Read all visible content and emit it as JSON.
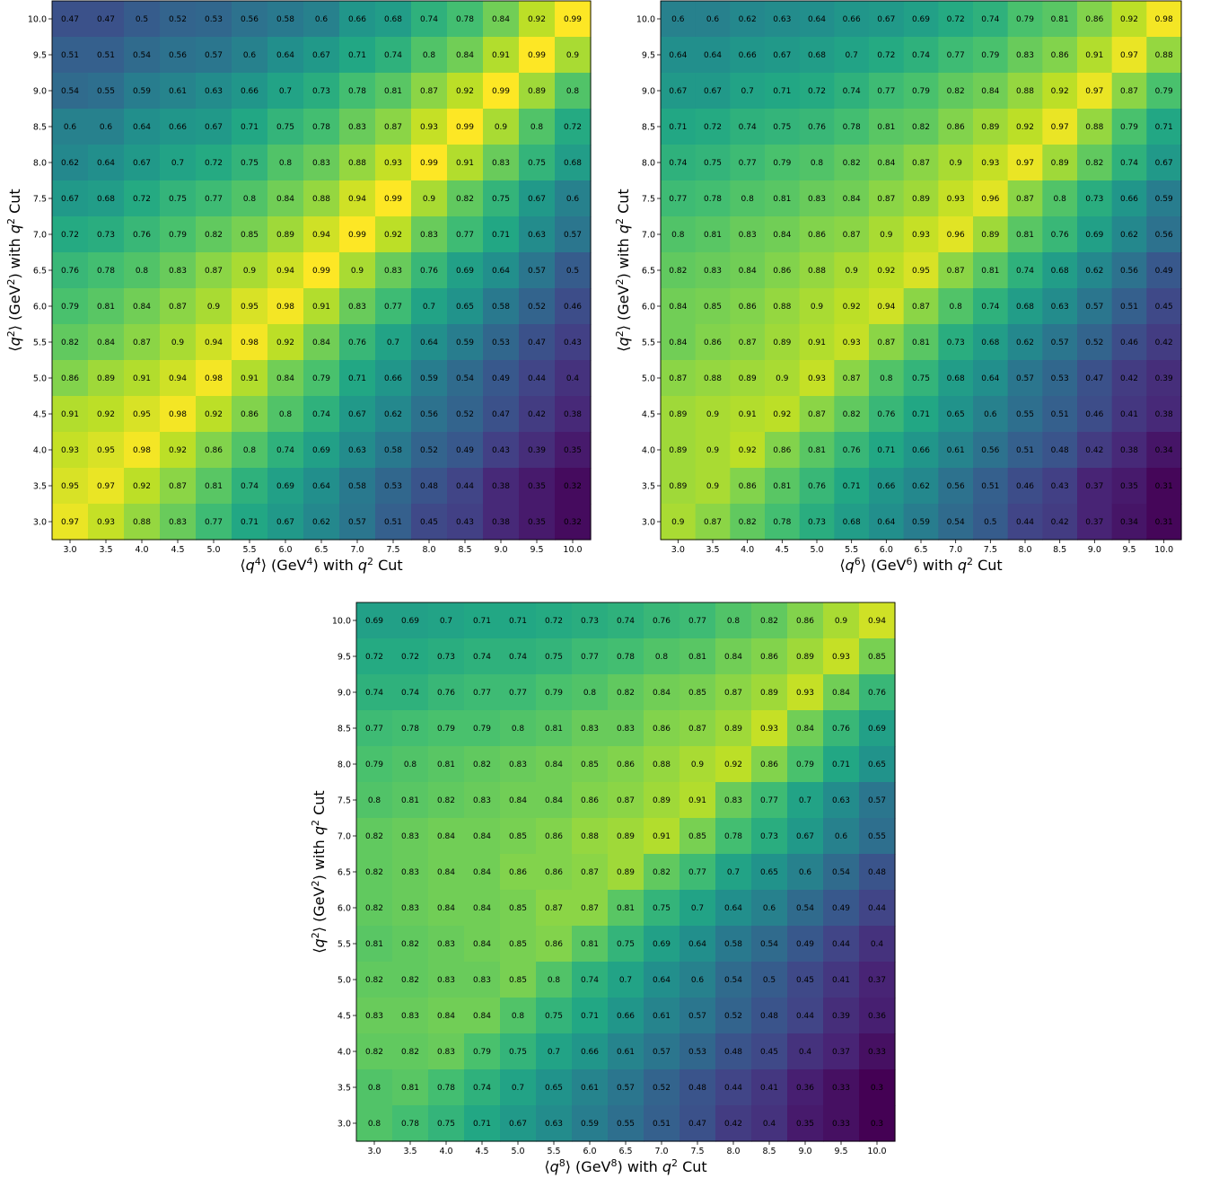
{
  "chart_data": [
    {
      "type": "heatmap",
      "title": "",
      "xlabel_parts": [
        {
          "t": "⟨",
          "s": "n"
        },
        {
          "t": "q",
          "s": "i"
        },
        {
          "t": "4",
          "s": "sup"
        },
        {
          "t": "⟩ (GeV",
          "s": "n"
        },
        {
          "t": "4",
          "s": "sup"
        },
        {
          "t": ") with ",
          "s": "n"
        },
        {
          "t": "q",
          "s": "i"
        },
        {
          "t": "2",
          "s": "sup"
        },
        {
          "t": " Cut",
          "s": "n"
        }
      ],
      "ylabel_parts": [
        {
          "t": "⟨",
          "s": "n"
        },
        {
          "t": "q",
          "s": "i"
        },
        {
          "t": "2",
          "s": "sup"
        },
        {
          "t": "⟩ (GeV",
          "s": "n"
        },
        {
          "t": "2",
          "s": "sup"
        },
        {
          "t": ") with ",
          "s": "n"
        },
        {
          "t": "q",
          "s": "i"
        },
        {
          "t": "2",
          "s": "sup"
        },
        {
          "t": " Cut",
          "s": "n"
        }
      ],
      "x": [
        "3.0",
        "3.5",
        "4.0",
        "4.5",
        "5.0",
        "5.5",
        "6.0",
        "6.5",
        "7.0",
        "7.5",
        "8.0",
        "8.5",
        "9.0",
        "9.5",
        "10.0"
      ],
      "y": [
        "10.0",
        "9.5",
        "9.0",
        "8.5",
        "8.0",
        "7.5",
        "7.0",
        "6.5",
        "6.0",
        "5.5",
        "5.0",
        "4.5",
        "4.0",
        "3.5",
        "3.0"
      ],
      "values": [
        [
          0.47,
          0.47,
          0.5,
          0.52,
          0.53,
          0.56,
          0.58,
          0.6,
          0.66,
          0.68,
          0.74,
          0.78,
          0.84,
          0.92,
          0.99
        ],
        [
          0.51,
          0.51,
          0.54,
          0.56,
          0.57,
          0.6,
          0.64,
          0.67,
          0.71,
          0.74,
          0.8,
          0.84,
          0.91,
          0.99,
          0.9
        ],
        [
          0.54,
          0.55,
          0.59,
          0.61,
          0.63,
          0.66,
          0.7,
          0.73,
          0.78,
          0.81,
          0.87,
          0.92,
          0.99,
          0.89,
          0.8
        ],
        [
          0.6,
          0.6,
          0.64,
          0.66,
          0.67,
          0.71,
          0.75,
          0.78,
          0.83,
          0.87,
          0.93,
          0.99,
          0.9,
          0.8,
          0.72
        ],
        [
          0.62,
          0.64,
          0.67,
          0.7,
          0.72,
          0.75,
          0.8,
          0.83,
          0.88,
          0.93,
          0.99,
          0.91,
          0.83,
          0.75,
          0.68
        ],
        [
          0.67,
          0.68,
          0.72,
          0.75,
          0.77,
          0.8,
          0.84,
          0.88,
          0.94,
          0.99,
          0.9,
          0.82,
          0.75,
          0.67,
          0.6
        ],
        [
          0.72,
          0.73,
          0.76,
          0.79,
          0.82,
          0.85,
          0.89,
          0.94,
          0.99,
          0.92,
          0.83,
          0.77,
          0.71,
          0.63,
          0.57
        ],
        [
          0.76,
          0.78,
          0.8,
          0.83,
          0.87,
          0.9,
          0.94,
          0.99,
          0.9,
          0.83,
          0.76,
          0.69,
          0.64,
          0.57,
          0.5
        ],
        [
          0.79,
          0.81,
          0.84,
          0.87,
          0.9,
          0.95,
          0.98,
          0.91,
          0.83,
          0.77,
          0.7,
          0.65,
          0.58,
          0.52,
          0.46
        ],
        [
          0.82,
          0.84,
          0.87,
          0.9,
          0.94,
          0.98,
          0.92,
          0.84,
          0.76,
          0.7,
          0.64,
          0.59,
          0.53,
          0.47,
          0.43
        ],
        [
          0.86,
          0.89,
          0.91,
          0.94,
          0.98,
          0.91,
          0.84,
          0.79,
          0.71,
          0.66,
          0.59,
          0.54,
          0.49,
          0.44,
          0.4
        ],
        [
          0.91,
          0.92,
          0.95,
          0.98,
          0.92,
          0.86,
          0.8,
          0.74,
          0.67,
          0.62,
          0.56,
          0.52,
          0.47,
          0.42,
          0.38
        ],
        [
          0.93,
          0.95,
          0.98,
          0.92,
          0.86,
          0.8,
          0.74,
          0.69,
          0.63,
          0.58,
          0.52,
          0.49,
          0.43,
          0.39,
          0.35
        ],
        [
          0.95,
          0.97,
          0.92,
          0.87,
          0.81,
          0.74,
          0.69,
          0.64,
          0.58,
          0.53,
          0.48,
          0.44,
          0.38,
          0.35,
          0.32
        ],
        [
          0.97,
          0.93,
          0.88,
          0.83,
          0.77,
          0.71,
          0.67,
          0.62,
          0.57,
          0.51,
          0.45,
          0.43,
          0.38,
          0.35,
          0.32
        ]
      ]
    },
    {
      "type": "heatmap",
      "title": "",
      "xlabel_parts": [
        {
          "t": "⟨",
          "s": "n"
        },
        {
          "t": "q",
          "s": "i"
        },
        {
          "t": "6",
          "s": "sup"
        },
        {
          "t": "⟩ (GeV",
          "s": "n"
        },
        {
          "t": "6",
          "s": "sup"
        },
        {
          "t": ") with ",
          "s": "n"
        },
        {
          "t": "q",
          "s": "i"
        },
        {
          "t": "2",
          "s": "sup"
        },
        {
          "t": " Cut",
          "s": "n"
        }
      ],
      "ylabel_parts": [
        {
          "t": "⟨",
          "s": "n"
        },
        {
          "t": "q",
          "s": "i"
        },
        {
          "t": "2",
          "s": "sup"
        },
        {
          "t": "⟩ (GeV",
          "s": "n"
        },
        {
          "t": "2",
          "s": "sup"
        },
        {
          "t": ") with ",
          "s": "n"
        },
        {
          "t": "q",
          "s": "i"
        },
        {
          "t": "2",
          "s": "sup"
        },
        {
          "t": " Cut",
          "s": "n"
        }
      ],
      "x": [
        "3.0",
        "3.5",
        "4.0",
        "4.5",
        "5.0",
        "5.5",
        "6.0",
        "6.5",
        "7.0",
        "7.5",
        "8.0",
        "8.5",
        "9.0",
        "9.5",
        "10.0"
      ],
      "y": [
        "10.0",
        "9.5",
        "9.0",
        "8.5",
        "8.0",
        "7.5",
        "7.0",
        "6.5",
        "6.0",
        "5.5",
        "5.0",
        "4.5",
        "4.0",
        "3.5",
        "3.0"
      ],
      "values": [
        [
          0.6,
          0.6,
          0.62,
          0.63,
          0.64,
          0.66,
          0.67,
          0.69,
          0.72,
          0.74,
          0.79,
          0.81,
          0.86,
          0.92,
          0.98
        ],
        [
          0.64,
          0.64,
          0.66,
          0.67,
          0.68,
          0.7,
          0.72,
          0.74,
          0.77,
          0.79,
          0.83,
          0.86,
          0.91,
          0.97,
          0.88
        ],
        [
          0.67,
          0.67,
          0.7,
          0.71,
          0.72,
          0.74,
          0.77,
          0.79,
          0.82,
          0.84,
          0.88,
          0.92,
          0.97,
          0.87,
          0.79
        ],
        [
          0.71,
          0.72,
          0.74,
          0.75,
          0.76,
          0.78,
          0.81,
          0.82,
          0.86,
          0.89,
          0.92,
          0.97,
          0.88,
          0.79,
          0.71
        ],
        [
          0.74,
          0.75,
          0.77,
          0.79,
          0.8,
          0.82,
          0.84,
          0.87,
          0.9,
          0.93,
          0.97,
          0.89,
          0.82,
          0.74,
          0.67
        ],
        [
          0.77,
          0.78,
          0.8,
          0.81,
          0.83,
          0.84,
          0.87,
          0.89,
          0.93,
          0.96,
          0.87,
          0.8,
          0.73,
          0.66,
          0.59
        ],
        [
          0.8,
          0.81,
          0.83,
          0.84,
          0.86,
          0.87,
          0.9,
          0.93,
          0.96,
          0.89,
          0.81,
          0.76,
          0.69,
          0.62,
          0.56
        ],
        [
          0.82,
          0.83,
          0.84,
          0.86,
          0.88,
          0.9,
          0.92,
          0.95,
          0.87,
          0.81,
          0.74,
          0.68,
          0.62,
          0.56,
          0.49
        ],
        [
          0.84,
          0.85,
          0.86,
          0.88,
          0.9,
          0.92,
          0.94,
          0.87,
          0.8,
          0.74,
          0.68,
          0.63,
          0.57,
          0.51,
          0.45
        ],
        [
          0.84,
          0.86,
          0.87,
          0.89,
          0.91,
          0.93,
          0.87,
          0.81,
          0.73,
          0.68,
          0.62,
          0.57,
          0.52,
          0.46,
          0.42
        ],
        [
          0.87,
          0.88,
          0.89,
          0.9,
          0.93,
          0.87,
          0.8,
          0.75,
          0.68,
          0.64,
          0.57,
          0.53,
          0.47,
          0.42,
          0.39
        ],
        [
          0.89,
          0.9,
          0.91,
          0.92,
          0.87,
          0.82,
          0.76,
          0.71,
          0.65,
          0.6,
          0.55,
          0.51,
          0.46,
          0.41,
          0.38
        ],
        [
          0.89,
          0.9,
          0.92,
          0.86,
          0.81,
          0.76,
          0.71,
          0.66,
          0.61,
          0.56,
          0.51,
          0.48,
          0.42,
          0.38,
          0.34
        ],
        [
          0.89,
          0.9,
          0.86,
          0.81,
          0.76,
          0.71,
          0.66,
          0.62,
          0.56,
          0.51,
          0.46,
          0.43,
          0.37,
          0.35,
          0.31
        ],
        [
          0.9,
          0.87,
          0.82,
          0.78,
          0.73,
          0.68,
          0.64,
          0.59,
          0.54,
          0.5,
          0.44,
          0.42,
          0.37,
          0.34,
          0.31
        ]
      ]
    },
    {
      "type": "heatmap",
      "title": "",
      "xlabel_parts": [
        {
          "t": "⟨",
          "s": "n"
        },
        {
          "t": "q",
          "s": "i"
        },
        {
          "t": "8",
          "s": "sup"
        },
        {
          "t": "⟩ (GeV",
          "s": "n"
        },
        {
          "t": "8",
          "s": "sup"
        },
        {
          "t": ") with ",
          "s": "n"
        },
        {
          "t": "q",
          "s": "i"
        },
        {
          "t": "2",
          "s": "sup"
        },
        {
          "t": " Cut",
          "s": "n"
        }
      ],
      "ylabel_parts": [
        {
          "t": "⟨",
          "s": "n"
        },
        {
          "t": "q",
          "s": "i"
        },
        {
          "t": "2",
          "s": "sup"
        },
        {
          "t": "⟩ (GeV",
          "s": "n"
        },
        {
          "t": "2",
          "s": "sup"
        },
        {
          "t": ") with ",
          "s": "n"
        },
        {
          "t": "q",
          "s": "i"
        },
        {
          "t": "2",
          "s": "sup"
        },
        {
          "t": " Cut",
          "s": "n"
        }
      ],
      "x": [
        "3.0",
        "3.5",
        "4.0",
        "4.5",
        "5.0",
        "5.5",
        "6.0",
        "6.5",
        "7.0",
        "7.5",
        "8.0",
        "8.5",
        "9.0",
        "9.5",
        "10.0"
      ],
      "y": [
        "10.0",
        "9.5",
        "9.0",
        "8.5",
        "8.0",
        "7.5",
        "7.0",
        "6.5",
        "6.0",
        "5.5",
        "5.0",
        "4.5",
        "4.0",
        "3.5",
        "3.0"
      ],
      "values": [
        [
          0.69,
          0.69,
          0.7,
          0.71,
          0.71,
          0.72,
          0.73,
          0.74,
          0.76,
          0.77,
          0.8,
          0.82,
          0.86,
          0.9,
          0.94
        ],
        [
          0.72,
          0.72,
          0.73,
          0.74,
          0.74,
          0.75,
          0.77,
          0.78,
          0.8,
          0.81,
          0.84,
          0.86,
          0.89,
          0.93,
          0.85
        ],
        [
          0.74,
          0.74,
          0.76,
          0.77,
          0.77,
          0.79,
          0.8,
          0.82,
          0.84,
          0.85,
          0.87,
          0.89,
          0.93,
          0.84,
          0.76
        ],
        [
          0.77,
          0.78,
          0.79,
          0.79,
          0.8,
          0.81,
          0.83,
          0.83,
          0.86,
          0.87,
          0.89,
          0.93,
          0.84,
          0.76,
          0.69
        ],
        [
          0.79,
          0.8,
          0.81,
          0.82,
          0.83,
          0.84,
          0.85,
          0.86,
          0.88,
          0.9,
          0.92,
          0.86,
          0.79,
          0.71,
          0.65
        ],
        [
          0.8,
          0.81,
          0.82,
          0.83,
          0.84,
          0.84,
          0.86,
          0.87,
          0.89,
          0.91,
          0.83,
          0.77,
          0.7,
          0.63,
          0.57
        ],
        [
          0.82,
          0.83,
          0.84,
          0.84,
          0.85,
          0.86,
          0.88,
          0.89,
          0.91,
          0.85,
          0.78,
          0.73,
          0.67,
          0.6,
          0.55
        ],
        [
          0.82,
          0.83,
          0.84,
          0.84,
          0.86,
          0.86,
          0.87,
          0.89,
          0.82,
          0.77,
          0.7,
          0.65,
          0.6,
          0.54,
          0.48
        ],
        [
          0.82,
          0.83,
          0.84,
          0.84,
          0.85,
          0.87,
          0.87,
          0.81,
          0.75,
          0.7,
          0.64,
          0.6,
          0.54,
          0.49,
          0.44
        ],
        [
          0.81,
          0.82,
          0.83,
          0.84,
          0.85,
          0.86,
          0.81,
          0.75,
          0.69,
          0.64,
          0.58,
          0.54,
          0.49,
          0.44,
          0.4
        ],
        [
          0.82,
          0.82,
          0.83,
          0.83,
          0.85,
          0.8,
          0.74,
          0.7,
          0.64,
          0.6,
          0.54,
          0.5,
          0.45,
          0.41,
          0.37
        ],
        [
          0.83,
          0.83,
          0.84,
          0.84,
          0.8,
          0.75,
          0.71,
          0.66,
          0.61,
          0.57,
          0.52,
          0.48,
          0.44,
          0.39,
          0.36
        ],
        [
          0.82,
          0.82,
          0.83,
          0.79,
          0.75,
          0.7,
          0.66,
          0.61,
          0.57,
          0.53,
          0.48,
          0.45,
          0.4,
          0.37,
          0.33
        ],
        [
          0.8,
          0.81,
          0.78,
          0.74,
          0.7,
          0.65,
          0.61,
          0.57,
          0.52,
          0.48,
          0.44,
          0.41,
          0.36,
          0.33,
          0.3
        ],
        [
          0.8,
          0.78,
          0.75,
          0.71,
          0.67,
          0.63,
          0.59,
          0.55,
          0.51,
          0.47,
          0.42,
          0.4,
          0.35,
          0.33,
          0.3
        ]
      ]
    }
  ]
}
